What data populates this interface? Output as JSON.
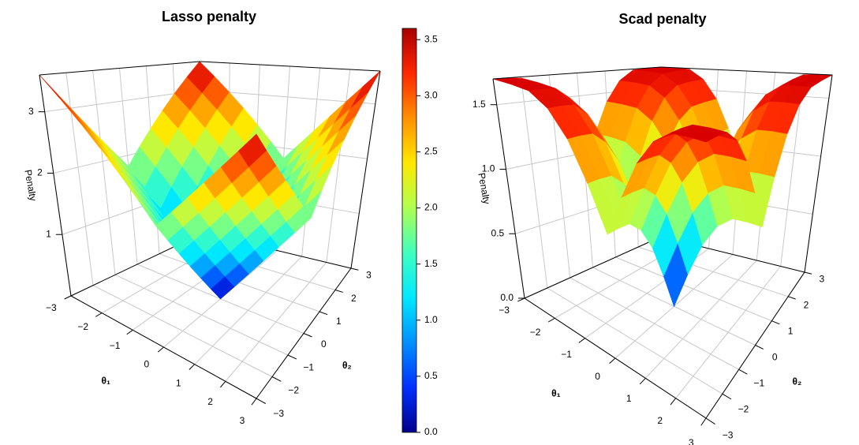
{
  "chart_data": [
    {
      "type": "surface3d",
      "title": "Lasso penalty",
      "xlabel": "θ₁",
      "ylabel": "θ₂",
      "zlabel": "Penalty",
      "x": [
        -3,
        -2.5,
        -2,
        -1.5,
        -1,
        -0.5,
        0,
        0.5,
        1,
        1.5,
        2,
        2.5,
        3
      ],
      "y": [
        -3,
        -2.5,
        -2,
        -1.5,
        -1,
        -0.5,
        0,
        0.5,
        1,
        1.5,
        2,
        2.5,
        3
      ],
      "z": [
        [
          3.6,
          3.3,
          3.0,
          2.7,
          2.4,
          2.1,
          1.8,
          2.1,
          2.4,
          2.7,
          3.0,
          3.3,
          3.6
        ],
        [
          3.3,
          3.0,
          2.7,
          2.4,
          2.1,
          1.8,
          1.5,
          1.8,
          2.1,
          2.4,
          2.7,
          3.0,
          3.3
        ],
        [
          3.0,
          2.7,
          2.4,
          2.1,
          1.8,
          1.5,
          1.2,
          1.5,
          1.8,
          2.1,
          2.4,
          2.7,
          3.0
        ],
        [
          2.7,
          2.4,
          2.1,
          1.8,
          1.5,
          1.2,
          0.9,
          1.2,
          1.5,
          1.8,
          2.1,
          2.4,
          2.7
        ],
        [
          2.4,
          2.1,
          1.8,
          1.5,
          1.2,
          0.9,
          0.6,
          0.9,
          1.2,
          1.5,
          1.8,
          2.1,
          2.4
        ],
        [
          2.1,
          1.8,
          1.5,
          1.2,
          0.9,
          0.6,
          0.3,
          0.6,
          0.9,
          1.2,
          1.5,
          1.8,
          2.1
        ],
        [
          1.8,
          1.5,
          1.2,
          0.9,
          0.6,
          0.3,
          0,
          0.3,
          0.6,
          0.9,
          1.2,
          1.5,
          1.8
        ],
        [
          2.1,
          1.8,
          1.5,
          1.2,
          0.9,
          0.6,
          0.3,
          0.6,
          0.9,
          1.2,
          1.5,
          1.8,
          2.1
        ],
        [
          2.4,
          2.1,
          1.8,
          1.5,
          1.2,
          0.9,
          0.6,
          0.9,
          1.2,
          1.5,
          1.8,
          2.1,
          2.4
        ],
        [
          2.7,
          2.4,
          2.1,
          1.8,
          1.5,
          1.2,
          0.9,
          1.2,
          1.5,
          1.8,
          2.1,
          2.4,
          2.7
        ],
        [
          3.0,
          2.7,
          2.4,
          2.1,
          1.8,
          1.5,
          1.2,
          1.5,
          1.8,
          2.1,
          2.4,
          2.7,
          3.0
        ],
        [
          3.3,
          3.0,
          2.7,
          2.4,
          2.1,
          1.8,
          1.5,
          1.8,
          2.1,
          2.4,
          2.7,
          3.0,
          3.3
        ],
        [
          3.6,
          3.3,
          3.0,
          2.7,
          2.4,
          2.1,
          1.8,
          2.1,
          2.4,
          2.7,
          3.0,
          3.3,
          3.6
        ]
      ],
      "xlim": [
        -3,
        3
      ],
      "ylim": [
        -3,
        3
      ],
      "zlim": [
        0,
        3.6
      ],
      "xticks": [
        {
          "value": -3,
          "label": "−3"
        },
        {
          "value": -2,
          "label": "−2"
        },
        {
          "value": -1,
          "label": "−1"
        },
        0,
        1,
        2,
        3
      ],
      "yticks": [
        {
          "value": -3,
          "label": "−3"
        },
        {
          "value": -2,
          "label": "−2"
        },
        {
          "value": -1,
          "label": "−1"
        },
        0,
        1,
        2,
        3
      ],
      "zticks": [
        1,
        2,
        3
      ],
      "colors": [
        "#00008b",
        "#0030ff",
        "#0090ff",
        "#00e8ff",
        "#40ffc0",
        "#b0ff50",
        "#ffe800",
        "#ff9000",
        "#ff2800",
        "#a80000"
      ],
      "colorbar": {
        "lim": [
          0,
          3.6
        ],
        "ticks": [
          {
            "value": 0,
            "label": "0.0"
          },
          {
            "value": 0.5,
            "label": "0.5"
          },
          {
            "value": 1,
            "label": "1.0"
          },
          {
            "value": 1.5,
            "label": "1.5"
          },
          {
            "value": 2,
            "label": "2.0"
          },
          {
            "value": 2.5,
            "label": "2.5"
          },
          {
            "value": 3,
            "label": "3.0"
          },
          {
            "value": 3.5,
            "label": "3.5"
          }
        ]
      },
      "grid": true
    },
    {
      "type": "surface3d",
      "title": "Scad penalty",
      "xlabel": "θ₁",
      "ylabel": "θ₂",
      "zlabel": "Penalty",
      "x": [
        -3,
        -2.5,
        -2,
        -1.5,
        -1,
        -0.5,
        0,
        0.5,
        1,
        1.5,
        2,
        2.5,
        3
      ],
      "y": [
        -3,
        -2.5,
        -2,
        -1.5,
        -1,
        -0.5,
        0,
        0.5,
        1,
        1.5,
        2,
        2.5,
        3
      ],
      "z": [
        [
          1.7,
          1.7,
          1.69,
          1.6,
          1.42,
          1.15,
          0.85,
          1.15,
          1.42,
          1.6,
          1.69,
          1.7,
          1.7
        ],
        [
          1.7,
          1.7,
          1.69,
          1.6,
          1.42,
          1.15,
          0.85,
          1.15,
          1.42,
          1.6,
          1.69,
          1.7,
          1.7
        ],
        [
          1.69,
          1.69,
          1.68,
          1.59,
          1.41,
          1.14,
          0.84,
          1.14,
          1.41,
          1.59,
          1.68,
          1.69,
          1.69
        ],
        [
          1.6,
          1.6,
          1.59,
          1.5,
          1.32,
          1.05,
          0.75,
          1.05,
          1.32,
          1.5,
          1.59,
          1.6,
          1.6
        ],
        [
          1.42,
          1.42,
          1.41,
          1.32,
          1.14,
          0.87,
          0.57,
          0.87,
          1.14,
          1.32,
          1.41,
          1.42,
          1.42
        ],
        [
          1.15,
          1.15,
          1.14,
          1.05,
          0.87,
          0.6,
          0.3,
          0.6,
          0.87,
          1.05,
          1.14,
          1.15,
          1.15
        ],
        [
          0.85,
          0.85,
          0.84,
          0.75,
          0.57,
          0.3,
          0,
          0.3,
          0.57,
          0.75,
          0.84,
          0.85,
          0.85
        ],
        [
          1.15,
          1.15,
          1.14,
          1.05,
          0.87,
          0.6,
          0.3,
          0.6,
          0.87,
          1.05,
          1.14,
          1.15,
          1.15
        ],
        [
          1.42,
          1.42,
          1.41,
          1.32,
          1.14,
          0.87,
          0.57,
          0.87,
          1.14,
          1.32,
          1.41,
          1.42,
          1.42
        ],
        [
          1.6,
          1.6,
          1.59,
          1.5,
          1.32,
          1.05,
          0.75,
          1.05,
          1.32,
          1.5,
          1.59,
          1.6,
          1.6
        ],
        [
          1.69,
          1.69,
          1.68,
          1.59,
          1.41,
          1.14,
          0.84,
          1.14,
          1.41,
          1.59,
          1.68,
          1.69,
          1.69
        ],
        [
          1.7,
          1.7,
          1.69,
          1.6,
          1.42,
          1.15,
          0.85,
          1.15,
          1.42,
          1.6,
          1.69,
          1.7,
          1.7
        ],
        [
          1.7,
          1.7,
          1.69,
          1.6,
          1.42,
          1.15,
          0.85,
          1.15,
          1.42,
          1.6,
          1.69,
          1.7,
          1.7
        ]
      ],
      "xlim": [
        -3,
        3
      ],
      "ylim": [
        -3,
        3
      ],
      "zlim": [
        0,
        1.7
      ],
      "xticks": [
        {
          "value": -3,
          "label": "−3"
        },
        {
          "value": -2,
          "label": "−2"
        },
        {
          "value": -1,
          "label": "−1"
        },
        0,
        1,
        2,
        3
      ],
      "yticks": [
        {
          "value": -3,
          "label": "−3"
        },
        {
          "value": -2,
          "label": "−2"
        },
        {
          "value": -1,
          "label": "−1"
        },
        0,
        1,
        2,
        3
      ],
      "zticks": [
        {
          "value": 0,
          "label": "0.0"
        },
        {
          "value": 0.5,
          "label": "0.5"
        },
        {
          "value": 1,
          "label": "1.0"
        },
        {
          "value": 1.5,
          "label": "1.5"
        }
      ],
      "colors": [
        "#00008b",
        "#0030ff",
        "#0090ff",
        "#00e8ff",
        "#40ffc0",
        "#b0ff50",
        "#ffe800",
        "#ff9000",
        "#ff2800",
        "#d80000"
      ],
      "grid": true
    }
  ]
}
